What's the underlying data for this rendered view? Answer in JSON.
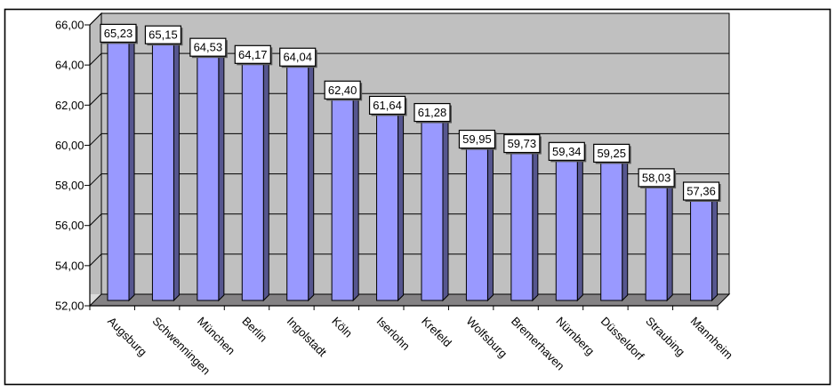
{
  "chart_data": {
    "type": "bar",
    "style": "excel-3d-column",
    "title": "",
    "xlabel": "",
    "ylabel": "",
    "categories": [
      "Augsburg",
      "Schwenningen",
      "München",
      "Berlin",
      "Ingolstadt",
      "Köln",
      "Iserlohn",
      "Krefeld",
      "Wolfsburg",
      "Bremerhaven",
      "Nürnberg",
      "Düsseldorf",
      "Straubing",
      "Mannheim"
    ],
    "values": [
      65.23,
      65.15,
      64.53,
      64.17,
      64.04,
      62.4,
      61.64,
      61.28,
      59.95,
      59.73,
      59.34,
      59.25,
      58.03,
      57.36
    ],
    "data_labels": [
      "65,23",
      "65,15",
      "64,53",
      "64,17",
      "64,04",
      "62,40",
      "61,64",
      "61,28",
      "59,95",
      "59,73",
      "59,34",
      "59,25",
      "58,03",
      "57,36"
    ],
    "ylim": [
      52,
      66
    ],
    "ytick_step": 2,
    "ytick_labels": [
      "52,00",
      "54,00",
      "56,00",
      "58,00",
      "60,00",
      "62,00",
      "64,00",
      "66,00"
    ],
    "decimal_separator": ",",
    "grid": true,
    "legend": false,
    "colors": {
      "bar_face": "#9999FF",
      "bar_side": "#56568F",
      "back_wall": "#C0C0C0",
      "left_wall": "#BDBDBD",
      "wall_highlight": "#DCDCDC",
      "floor": "#848284",
      "gridline": "#000000",
      "axis": "#000000",
      "label_box_bg": "#FFFFFF",
      "label_box_border": "#000000",
      "label_box_shadow": "#5A5A5A",
      "text": "#000000",
      "frame_bg": "#FFFFFF",
      "frame_border": "#000000"
    }
  }
}
